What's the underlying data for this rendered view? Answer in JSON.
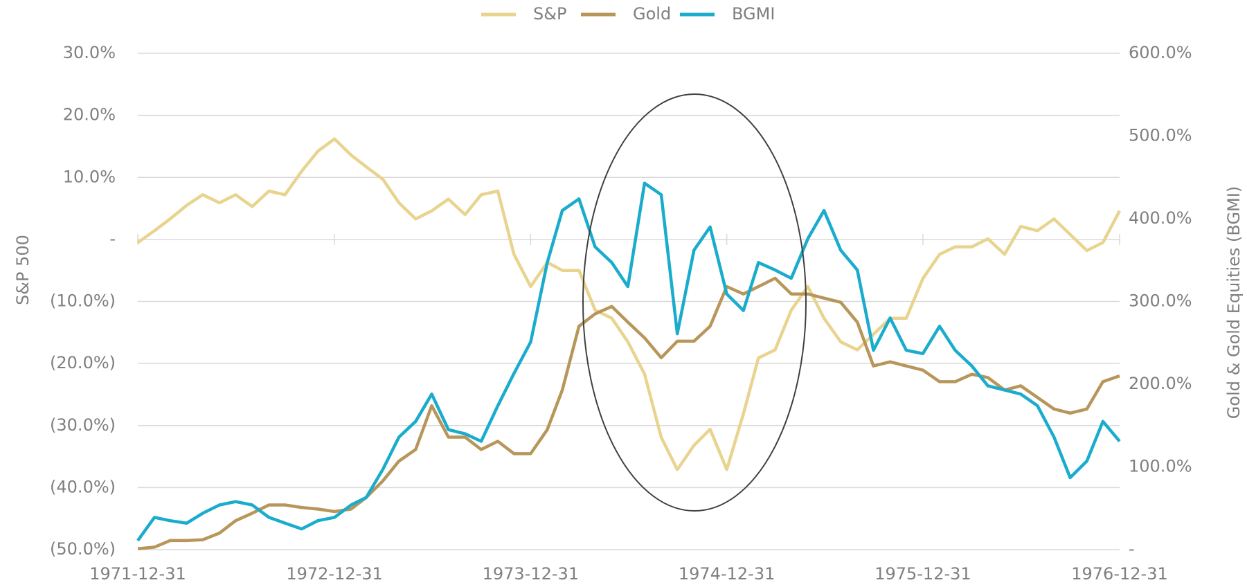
{
  "chart_data": {
    "type": "line",
    "y_label": "S&P 500",
    "y2_label": "Gold & Gold Equities (BGMI)",
    "x": [
      "1971-12-31",
      "1972-01-31",
      "1972-02-29",
      "1972-03-31",
      "1972-04-30",
      "1972-05-31",
      "1972-06-30",
      "1972-07-31",
      "1972-08-31",
      "1972-09-30",
      "1972-10-31",
      "1972-11-30",
      "1972-12-31",
      "1973-01-31",
      "1973-02-28",
      "1973-03-31",
      "1973-04-30",
      "1973-05-31",
      "1973-06-30",
      "1973-07-31",
      "1973-08-31",
      "1973-09-30",
      "1973-10-31",
      "1973-11-30",
      "1973-12-31",
      "1974-01-31",
      "1974-02-28",
      "1974-03-31",
      "1974-04-30",
      "1974-05-31",
      "1974-06-30",
      "1974-07-31",
      "1974-08-31",
      "1974-09-30",
      "1974-10-31",
      "1974-11-30",
      "1974-12-31",
      "1975-01-31",
      "1975-02-28",
      "1975-03-31",
      "1975-04-30",
      "1975-05-31",
      "1975-06-30",
      "1975-07-31",
      "1975-08-31",
      "1975-09-30",
      "1975-10-31",
      "1975-11-30",
      "1975-12-31",
      "1976-01-31",
      "1976-02-29",
      "1976-03-31",
      "1976-04-30",
      "1976-05-31",
      "1976-06-30",
      "1976-07-31",
      "1976-08-31",
      "1976-09-30",
      "1976-10-31",
      "1976-11-30",
      "1976-12-31"
    ],
    "series": [
      {
        "name": "S&P",
        "color": "#e8d48f",
        "axis": "y",
        "values": [
          -0.5,
          1.4,
          3.3,
          5.5,
          7.2,
          5.9,
          7.2,
          5.3,
          7.8,
          7.2,
          11.0,
          14.2,
          16.2,
          13.6,
          11.7,
          9.7,
          5.9,
          3.3,
          4.6,
          6.5,
          4.0,
          7.2,
          7.8,
          -2.4,
          -7.6,
          -3.7,
          -5.0,
          -5.0,
          -11.4,
          -12.7,
          -16.5,
          -21.7,
          -31.9,
          -37.1,
          -33.2,
          -30.6,
          -37.1,
          -28.1,
          -19.1,
          -17.8,
          -11.4,
          -7.6,
          -12.7,
          -16.5,
          -17.8,
          -15.3,
          -12.7,
          -12.7,
          -6.3,
          -2.4,
          -1.2,
          -1.2,
          0.1,
          -2.4,
          2.1,
          1.4,
          3.3,
          0.8,
          -1.8,
          -0.5,
          4.6
        ]
      },
      {
        "name": "Gold",
        "color": "#b8965a",
        "axis": "y2",
        "values": [
          1,
          3,
          11,
          11,
          12,
          20,
          35,
          44,
          54,
          54,
          51,
          49,
          46,
          49,
          63,
          83,
          107,
          121,
          174,
          136,
          136,
          121,
          131,
          116,
          116,
          145,
          193,
          270,
          285,
          294,
          275,
          256,
          232,
          252,
          252,
          270,
          318,
          309,
          318,
          328,
          309,
          309,
          304,
          299,
          275,
          222,
          227,
          222,
          217,
          203,
          203,
          212,
          208,
          193,
          198,
          184,
          170,
          165,
          170,
          203,
          210
        ]
      },
      {
        "name": "BGMI",
        "color": "#1aaccc",
        "axis": "y2",
        "values": [
          11,
          39,
          35,
          32,
          44,
          54,
          58,
          54,
          39,
          32,
          25,
          35,
          39,
          54,
          63,
          97,
          136,
          155,
          188,
          145,
          140,
          131,
          174,
          213,
          251,
          347,
          410,
          424,
          366,
          347,
          318,
          443,
          429,
          261,
          362,
          390,
          309,
          289,
          347,
          338,
          328,
          376,
          410,
          362,
          338,
          241,
          280,
          241,
          237,
          270,
          241,
          222,
          198,
          193,
          188,
          174,
          136,
          87,
          107,
          155,
          131
        ]
      }
    ],
    "xlim": [
      "1971-12-31",
      "1976-12-31"
    ],
    "xticks": [
      "1971-12-31",
      "1972-12-31",
      "1973-12-31",
      "1974-12-31",
      "1975-12-31",
      "1976-12-31"
    ],
    "ylim": [
      -50,
      30
    ],
    "yticks": [
      {
        "value": -50,
        "label": "(50.0%)"
      },
      {
        "value": -40,
        "label": "(40.0%)"
      },
      {
        "value": -30,
        "label": "(30.0%)"
      },
      {
        "value": -20,
        "label": "(20.0%)"
      },
      {
        "value": -10,
        "label": "(10.0%)"
      },
      {
        "value": 0,
        "label": "-"
      },
      {
        "value": 10,
        "label": "10.0%"
      },
      {
        "value": 20,
        "label": "20.0%"
      },
      {
        "value": 30,
        "label": "30.0%"
      }
    ],
    "y2lim": [
      0,
      600
    ],
    "y2ticks": [
      {
        "value": 0,
        "label": "-"
      },
      {
        "value": 100,
        "label": "100.0%"
      },
      {
        "value": 200,
        "label": "200.0%"
      },
      {
        "value": 300,
        "label": "300.0%"
      },
      {
        "value": 400,
        "label": "400.0%"
      },
      {
        "value": 500,
        "label": "500.0%"
      },
      {
        "value": 600,
        "label": "600.0%"
      }
    ],
    "grid": true,
    "legend": "top"
  }
}
